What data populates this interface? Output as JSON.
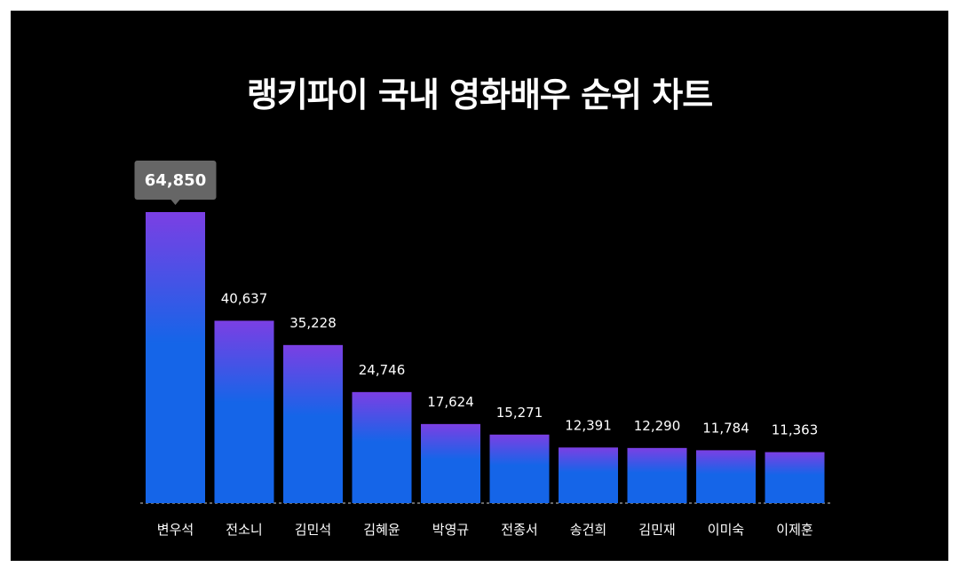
{
  "colors": {
    "background": "#000000",
    "bar_top": "#7b3fe4",
    "bar_bottom": "#1565e8",
    "tooltip_bg": "#666666",
    "text": "#ffffff"
  },
  "chart_data": {
    "type": "bar",
    "title": "랭키파이 국내 영화배우 순위 차트",
    "categories": [
      "변우석",
      "전소니",
      "김민석",
      "김혜윤",
      "박영규",
      "전종서",
      "송건희",
      "김민재",
      "이미숙",
      "이제훈"
    ],
    "values": [
      64850,
      40637,
      35228,
      24746,
      17624,
      15271,
      12391,
      12290,
      11784,
      11363
    ],
    "value_labels": [
      "64,850",
      "40,637",
      "35,228",
      "24,746",
      "17,624",
      "15,271",
      "12,391",
      "12,290",
      "11,784",
      "11,363"
    ],
    "highlight_index": 0,
    "xlabel": "",
    "ylabel": "",
    "ylim": [
      0,
      64850
    ],
    "grid": false,
    "legend": "none"
  }
}
